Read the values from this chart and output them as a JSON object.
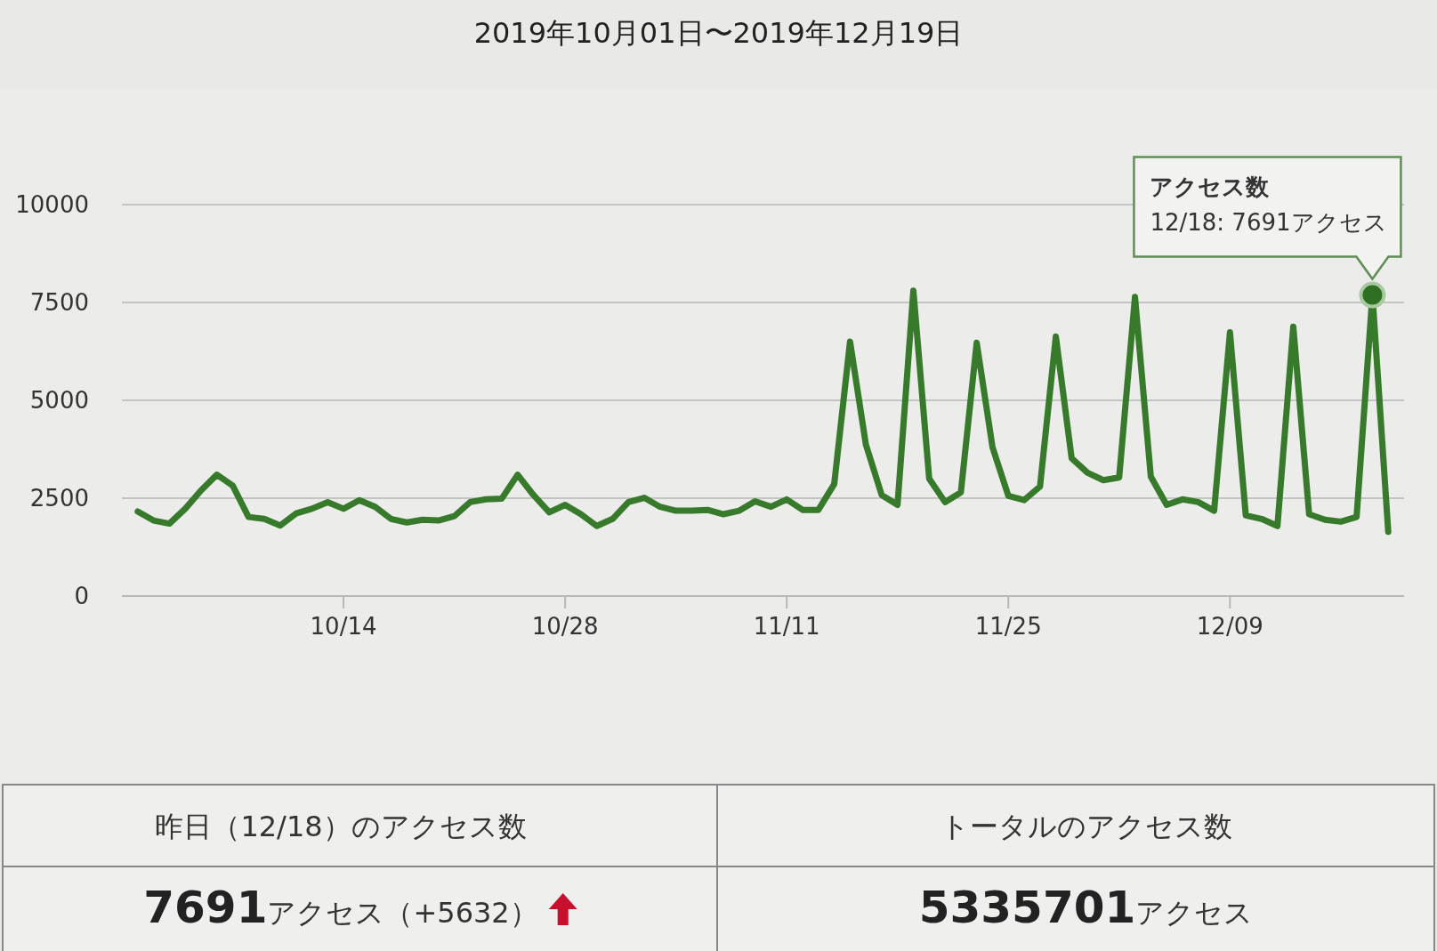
{
  "chart_data": {
    "type": "line",
    "title": "2019年10月01日〜2019年12月19日",
    "x": [
      "2019-10-01",
      "2019-10-02",
      "2019-10-03",
      "2019-10-04",
      "2019-10-05",
      "2019-10-06",
      "2019-10-07",
      "2019-10-08",
      "2019-10-09",
      "2019-10-10",
      "2019-10-11",
      "2019-10-12",
      "2019-10-13",
      "2019-10-14",
      "2019-10-15",
      "2019-10-16",
      "2019-10-17",
      "2019-10-18",
      "2019-10-19",
      "2019-10-20",
      "2019-10-21",
      "2019-10-22",
      "2019-10-23",
      "2019-10-24",
      "2019-10-25",
      "2019-10-26",
      "2019-10-27",
      "2019-10-28",
      "2019-10-29",
      "2019-10-30",
      "2019-10-31",
      "2019-11-01",
      "2019-11-02",
      "2019-11-03",
      "2019-11-04",
      "2019-11-05",
      "2019-11-06",
      "2019-11-07",
      "2019-11-08",
      "2019-11-09",
      "2019-11-10",
      "2019-11-11",
      "2019-11-12",
      "2019-11-13",
      "2019-11-14",
      "2019-11-15",
      "2019-11-16",
      "2019-11-17",
      "2019-11-18",
      "2019-11-19",
      "2019-11-20",
      "2019-11-21",
      "2019-11-22",
      "2019-11-23",
      "2019-11-24",
      "2019-11-25",
      "2019-11-26",
      "2019-11-27",
      "2019-11-28",
      "2019-11-29",
      "2019-11-30",
      "2019-12-01",
      "2019-12-02",
      "2019-12-03",
      "2019-12-04",
      "2019-12-05",
      "2019-12-06",
      "2019-12-07",
      "2019-12-08",
      "2019-12-09",
      "2019-12-10",
      "2019-12-11",
      "2019-12-12",
      "2019-12-13",
      "2019-12-14",
      "2019-12-15",
      "2019-12-16",
      "2019-12-17",
      "2019-12-18",
      "2019-12-19"
    ],
    "series": [
      {
        "color": "#387a2b",
        "values": [
          2160,
          1930,
          1850,
          2230,
          2700,
          3100,
          2820,
          2020,
          1970,
          1800,
          2110,
          2230,
          2400,
          2230,
          2450,
          2280,
          1970,
          1880,
          1950,
          1930,
          2040,
          2400,
          2470,
          2490,
          3100,
          2580,
          2140,
          2330,
          2090,
          1790,
          1970,
          2400,
          2510,
          2280,
          2180,
          2180,
          2200,
          2090,
          2180,
          2420,
          2280,
          2470,
          2200,
          2200,
          2860,
          6500,
          3870,
          2580,
          2330,
          7800,
          3000,
          2400,
          2650,
          6470,
          3800,
          2560,
          2450,
          2800,
          6630,
          3520,
          3150,
          2960,
          3030,
          7640,
          3050,
          2330,
          2470,
          2400,
          2180,
          6740,
          2060,
          1970,
          1790,
          6880,
          2090,
          1950,
          1900,
          2020,
          7691,
          1640
        ]
      }
    ],
    "xlim": [
      "2019-09-30",
      "2019-12-20"
    ],
    "xticks": [
      {
        "value": "2019-10-14",
        "label": "10/14"
      },
      {
        "value": "2019-10-28",
        "label": "10/28"
      },
      {
        "value": "2019-11-11",
        "label": "11/11"
      },
      {
        "value": "2019-11-25",
        "label": "11/25"
      },
      {
        "value": "2019-12-09",
        "label": "12/09"
      }
    ],
    "ylim": [
      0,
      10000
    ],
    "yticks": [
      0,
      2500,
      5000,
      7500,
      10000
    ],
    "grid": "y",
    "line_style": "solid",
    "annotations": [
      {
        "text": "アクセス数\n12/18: 7691アクセス",
        "x": "2019-12-18",
        "y": 7691
      },
      "昨日（12/18）のアクセス数",
      "トータルのアクセス数",
      "7691アクセス（+5632）",
      "5335701アクセス"
    ]
  }
}
